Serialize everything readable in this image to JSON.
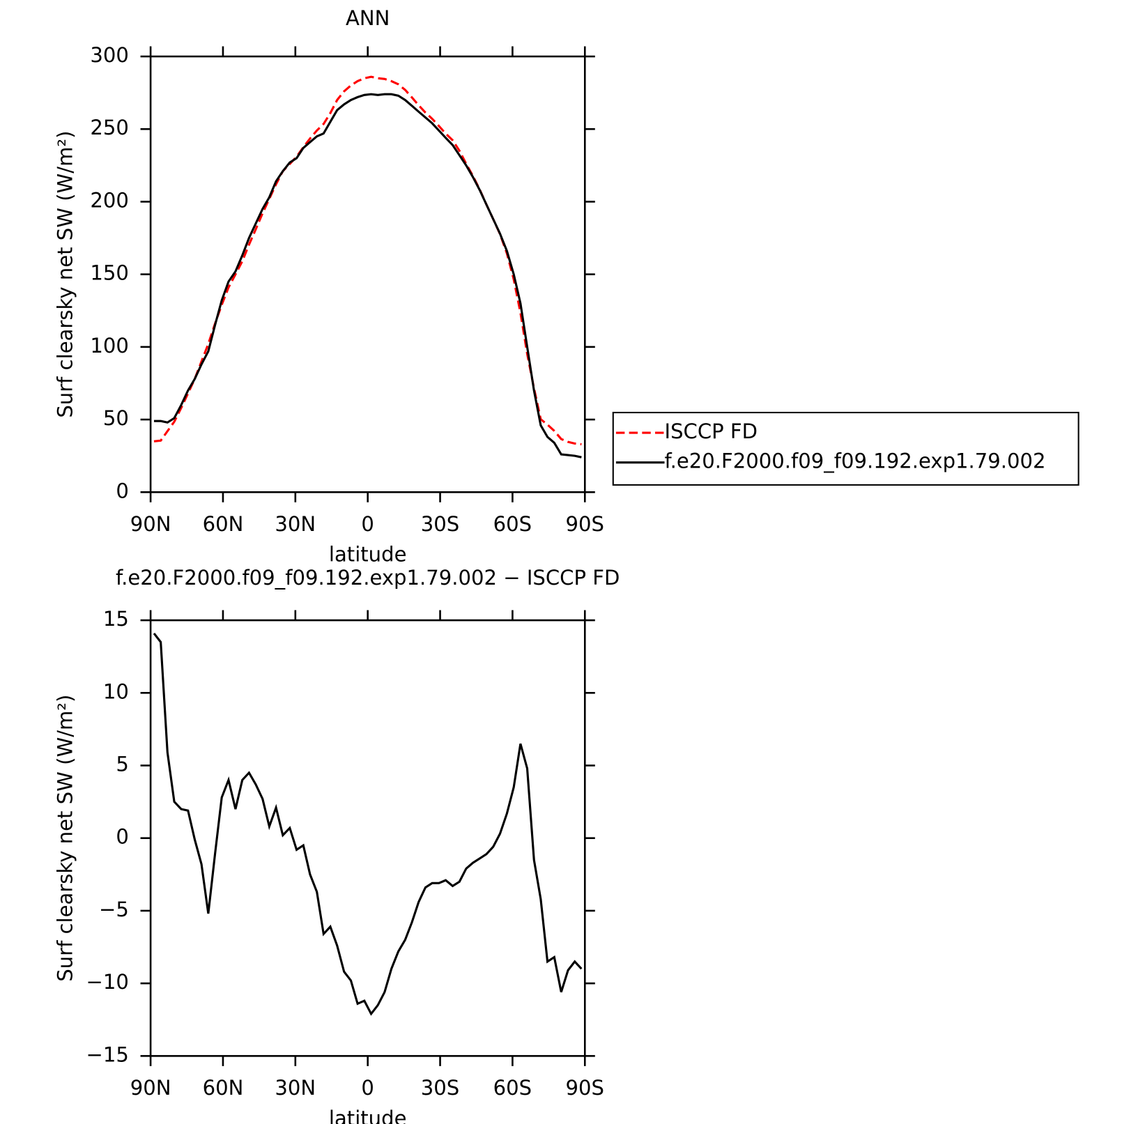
{
  "chart_data": [
    {
      "type": "line",
      "title": "ANN",
      "xlabel": "latitude",
      "ylabel": "Surf clearsky net SW (W/m²)",
      "x": [
        88.6,
        85.8,
        83.0,
        80.2,
        77.3,
        74.5,
        71.7,
        68.9,
        66.1,
        63.3,
        60.5,
        57.7,
        54.8,
        52.0,
        49.2,
        46.4,
        43.6,
        40.8,
        38.0,
        35.2,
        32.3,
        29.5,
        26.7,
        23.9,
        21.1,
        18.3,
        15.5,
        12.7,
        9.8,
        7.0,
        4.2,
        1.4,
        -1.4,
        -4.2,
        -7.0,
        -9.8,
        -12.7,
        -15.5,
        -18.3,
        -21.1,
        -23.9,
        -26.7,
        -29.5,
        -32.3,
        -35.2,
        -38.0,
        -40.8,
        -43.6,
        -46.4,
        -49.2,
        -52.0,
        -54.8,
        -57.7,
        -60.5,
        -63.3,
        -66.1,
        -68.9,
        -71.7,
        -74.5,
        -77.3,
        -80.2,
        -83.0,
        -85.8,
        -88.6
      ],
      "series": [
        {
          "name": "ISCCP FD",
          "color": "#ff0000",
          "style": "dashed",
          "values": [
            35,
            35.5,
            42,
            48.5,
            58,
            68,
            78,
            90,
            102,
            116,
            129,
            141,
            150,
            159,
            170.5,
            181,
            192,
            202,
            212,
            221,
            226,
            231,
            237.5,
            243.5,
            249,
            253.5,
            261,
            270,
            276,
            280,
            283,
            285,
            286,
            285,
            284.5,
            283,
            280.8,
            277,
            271.8,
            266.4,
            261.4,
            257.1,
            252.1,
            246.9,
            242.3,
            235,
            226.1,
            217.7,
            208.4,
            198,
            188,
            177.7,
            164.3,
            146.5,
            123.5,
            95.2,
            71.5,
            50.2,
            46.5,
            42.2,
            36.6,
            34.6,
            33.5,
            33
          ]
        },
        {
          "name": "f.e20.F2000.f09_f09.192.exp1.79.002",
          "color": "#000000",
          "style": "solid",
          "values": [
            49,
            49,
            48,
            51,
            60,
            70,
            78,
            88,
            97,
            115,
            132,
            145,
            152,
            163,
            175,
            185,
            195,
            203,
            214,
            221,
            227,
            230,
            237,
            241,
            245,
            247,
            255,
            263,
            267,
            270,
            272,
            273.5,
            274,
            273.5,
            274,
            274,
            273,
            270,
            266,
            262,
            258,
            254,
            249,
            244,
            239,
            232,
            225,
            217,
            208,
            198,
            188,
            178,
            166,
            150,
            130,
            100,
            70,
            46,
            38,
            34,
            26,
            25.5,
            25,
            24
          ]
        }
      ],
      "xlim": [
        90,
        -90
      ],
      "xticks": [
        {
          "value": 90,
          "label": "90N"
        },
        {
          "value": 60,
          "label": "60N"
        },
        {
          "value": 30,
          "label": "30N"
        },
        0,
        {
          "value": -30,
          "label": "30S"
        },
        {
          "value": -60,
          "label": "60S"
        },
        {
          "value": -90,
          "label": "90S"
        }
      ],
      "ylim": [
        0,
        300
      ],
      "yticks": [
        0,
        50,
        100,
        150,
        200,
        250,
        300
      ],
      "legend": "right"
    },
    {
      "type": "line",
      "title": "f.e20.F2000.f09_f09.192.exp1.79.002 − ISCCP FD",
      "xlabel": "latitude",
      "ylabel": "Surf clearsky net SW (W/m²)",
      "x": [
        88.6,
        85.8,
        83.0,
        80.2,
        77.3,
        74.5,
        71.7,
        68.9,
        66.1,
        63.3,
        60.5,
        57.7,
        54.8,
        52.0,
        49.2,
        46.4,
        43.6,
        40.8,
        38.0,
        35.2,
        32.3,
        29.5,
        26.7,
        23.9,
        21.1,
        18.3,
        15.5,
        12.7,
        9.8,
        7.0,
        4.2,
        1.4,
        -1.4,
        -4.2,
        -7.0,
        -9.8,
        -12.7,
        -15.5,
        -18.3,
        -21.1,
        -23.9,
        -26.7,
        -29.5,
        -32.3,
        -35.2,
        -38.0,
        -40.8,
        -43.6,
        -46.4,
        -49.2,
        -52.0,
        -54.8,
        -57.7,
        -60.5,
        -63.3,
        -66.1,
        -68.9,
        -71.7,
        -74.5,
        -77.3,
        -80.2,
        -83.0,
        -85.8,
        -88.6
      ],
      "series": [
        {
          "color": "#000000",
          "style": "solid",
          "values": [
            14.1,
            13.5,
            5.9,
            2.5,
            2.0,
            1.9,
            -0.1,
            -1.8,
            -5.2,
            -1.1,
            2.8,
            4.0,
            2.0,
            4.0,
            4.5,
            3.7,
            2.7,
            0.8,
            2.1,
            0.2,
            0.7,
            -0.8,
            -0.5,
            -2.5,
            -3.7,
            -6.6,
            -6.1,
            -7.4,
            -9.2,
            -9.8,
            -11.4,
            -11.2,
            -12.1,
            -11.5,
            -10.6,
            -9.0,
            -7.8,
            -7.0,
            -5.8,
            -4.4,
            -3.4,
            -3.1,
            -3.1,
            -2.9,
            -3.3,
            -3.0,
            -2.1,
            -1.7,
            -1.4,
            -1.1,
            -0.6,
            0.3,
            1.7,
            3.5,
            6.5,
            4.8,
            -1.5,
            -4.2,
            -8.5,
            -8.2,
            -10.6,
            -9.1,
            -8.5,
            -9.0
          ]
        }
      ],
      "xlim": [
        90,
        -90
      ],
      "xticks": [
        {
          "value": 90,
          "label": "90N"
        },
        {
          "value": 60,
          "label": "60N"
        },
        {
          "value": 30,
          "label": "30N"
        },
        0,
        {
          "value": -30,
          "label": "30S"
        },
        {
          "value": -60,
          "label": "60S"
        },
        {
          "value": -90,
          "label": "90S"
        }
      ],
      "ylim": [
        -15,
        15
      ],
      "yticks": [
        {
          "value": -15,
          "label": "−15"
        },
        {
          "value": -10,
          "label": "−10"
        },
        {
          "value": -5,
          "label": "−5"
        },
        0,
        5,
        10,
        15
      ]
    }
  ]
}
